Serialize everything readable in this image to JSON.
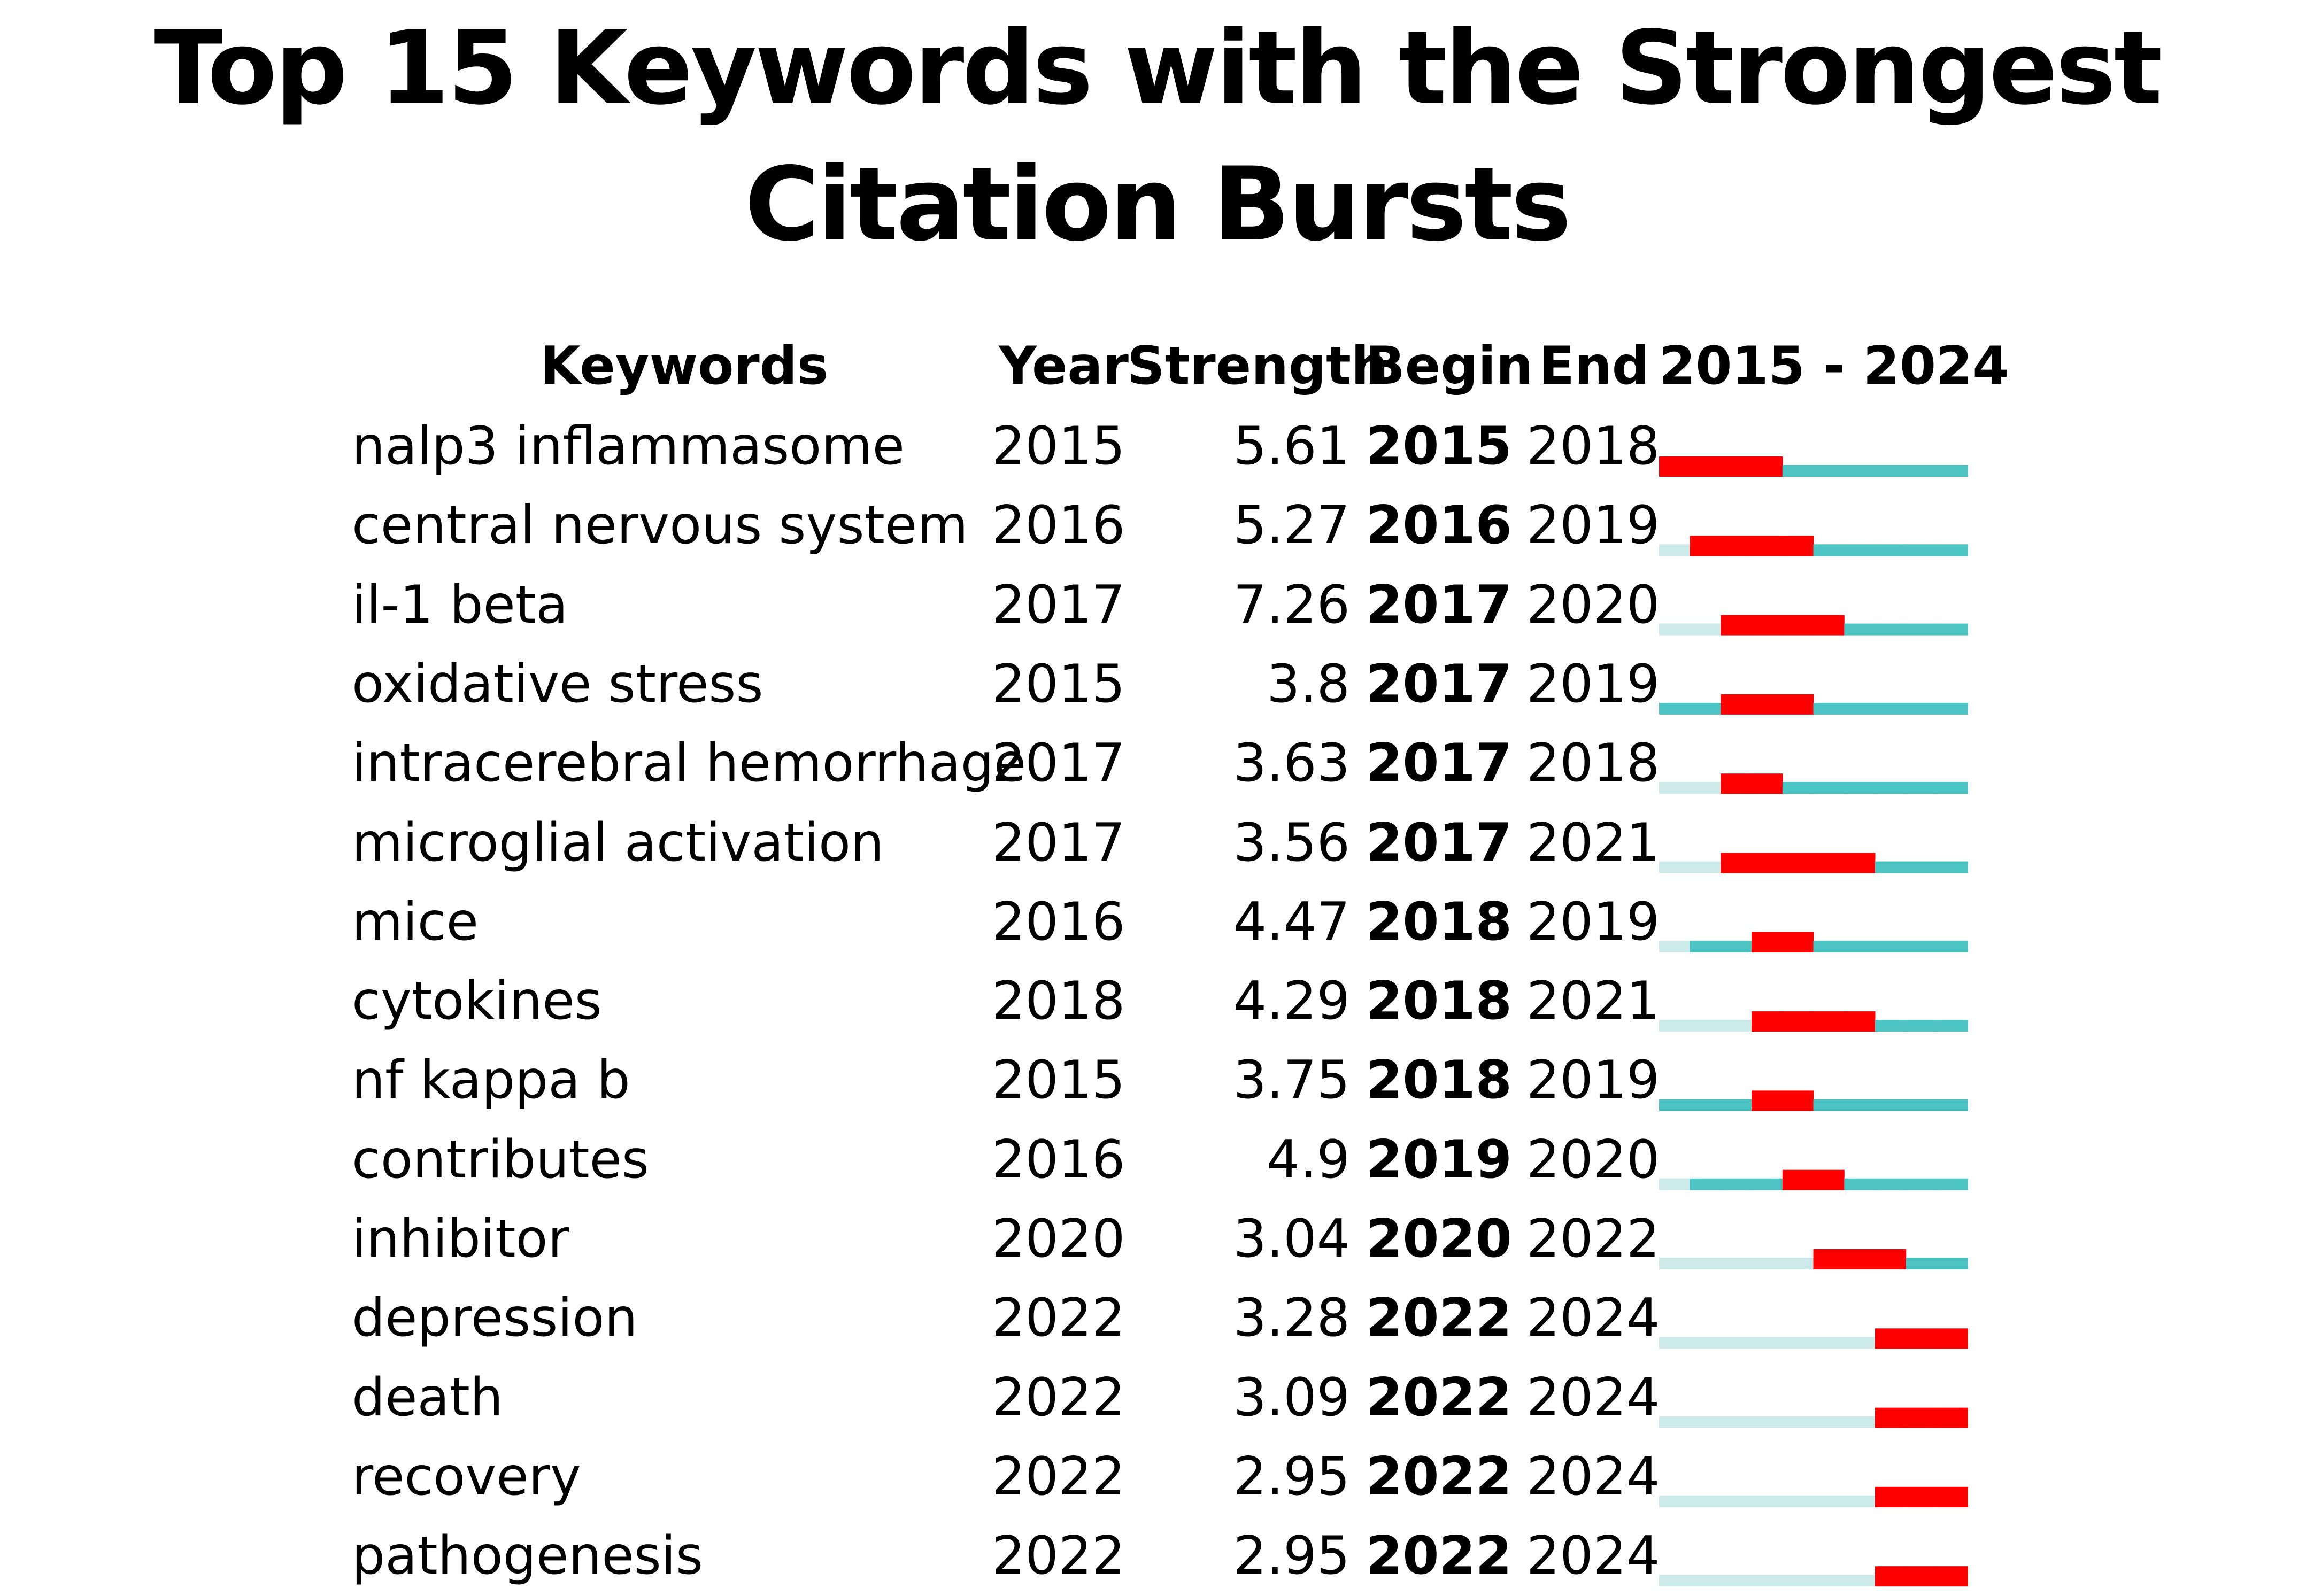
{
  "chart_data": {
    "type": "table",
    "title": "Top 15 Keywords with the Strongest Citation Bursts",
    "columns": [
      "Keywords",
      "Year",
      "Strength",
      "Begin",
      "End",
      "2015 - 2024"
    ],
    "timeline": {
      "start": 2015,
      "end": 2024
    },
    "colors": {
      "burst": "#ff0000",
      "active": "#4dc4c4",
      "inactive": "#cdeaea"
    },
    "rows": [
      {
        "keyword": "nalp3 inflammasome",
        "year": "2015",
        "strength": "5.61",
        "begin": "2015",
        "end": "2018"
      },
      {
        "keyword": "central nervous system",
        "year": "2016",
        "strength": "5.27",
        "begin": "2016",
        "end": "2019"
      },
      {
        "keyword": "il-1 beta",
        "year": "2017",
        "strength": "7.26",
        "begin": "2017",
        "end": "2020"
      },
      {
        "keyword": "oxidative stress",
        "year": "2015",
        "strength": "3.8",
        "begin": "2017",
        "end": "2019"
      },
      {
        "keyword": "intracerebral hemorrhage",
        "year": "2017",
        "strength": "3.63",
        "begin": "2017",
        "end": "2018"
      },
      {
        "keyword": "microglial activation",
        "year": "2017",
        "strength": "3.56",
        "begin": "2017",
        "end": "2021"
      },
      {
        "keyword": "mice",
        "year": "2016",
        "strength": "4.47",
        "begin": "2018",
        "end": "2019"
      },
      {
        "keyword": "cytokines",
        "year": "2018",
        "strength": "4.29",
        "begin": "2018",
        "end": "2021"
      },
      {
        "keyword": "nf kappa b",
        "year": "2015",
        "strength": "3.75",
        "begin": "2018",
        "end": "2019"
      },
      {
        "keyword": "contributes",
        "year": "2016",
        "strength": "4.9",
        "begin": "2019",
        "end": "2020"
      },
      {
        "keyword": "inhibitor",
        "year": "2020",
        "strength": "3.04",
        "begin": "2020",
        "end": "2022"
      },
      {
        "keyword": "depression",
        "year": "2022",
        "strength": "3.28",
        "begin": "2022",
        "end": "2024"
      },
      {
        "keyword": "death",
        "year": "2022",
        "strength": "3.09",
        "begin": "2022",
        "end": "2024"
      },
      {
        "keyword": "recovery",
        "year": "2022",
        "strength": "2.95",
        "begin": "2022",
        "end": "2024"
      },
      {
        "keyword": "pathogenesis",
        "year": "2022",
        "strength": "2.95",
        "begin": "2022",
        "end": "2024"
      }
    ]
  }
}
